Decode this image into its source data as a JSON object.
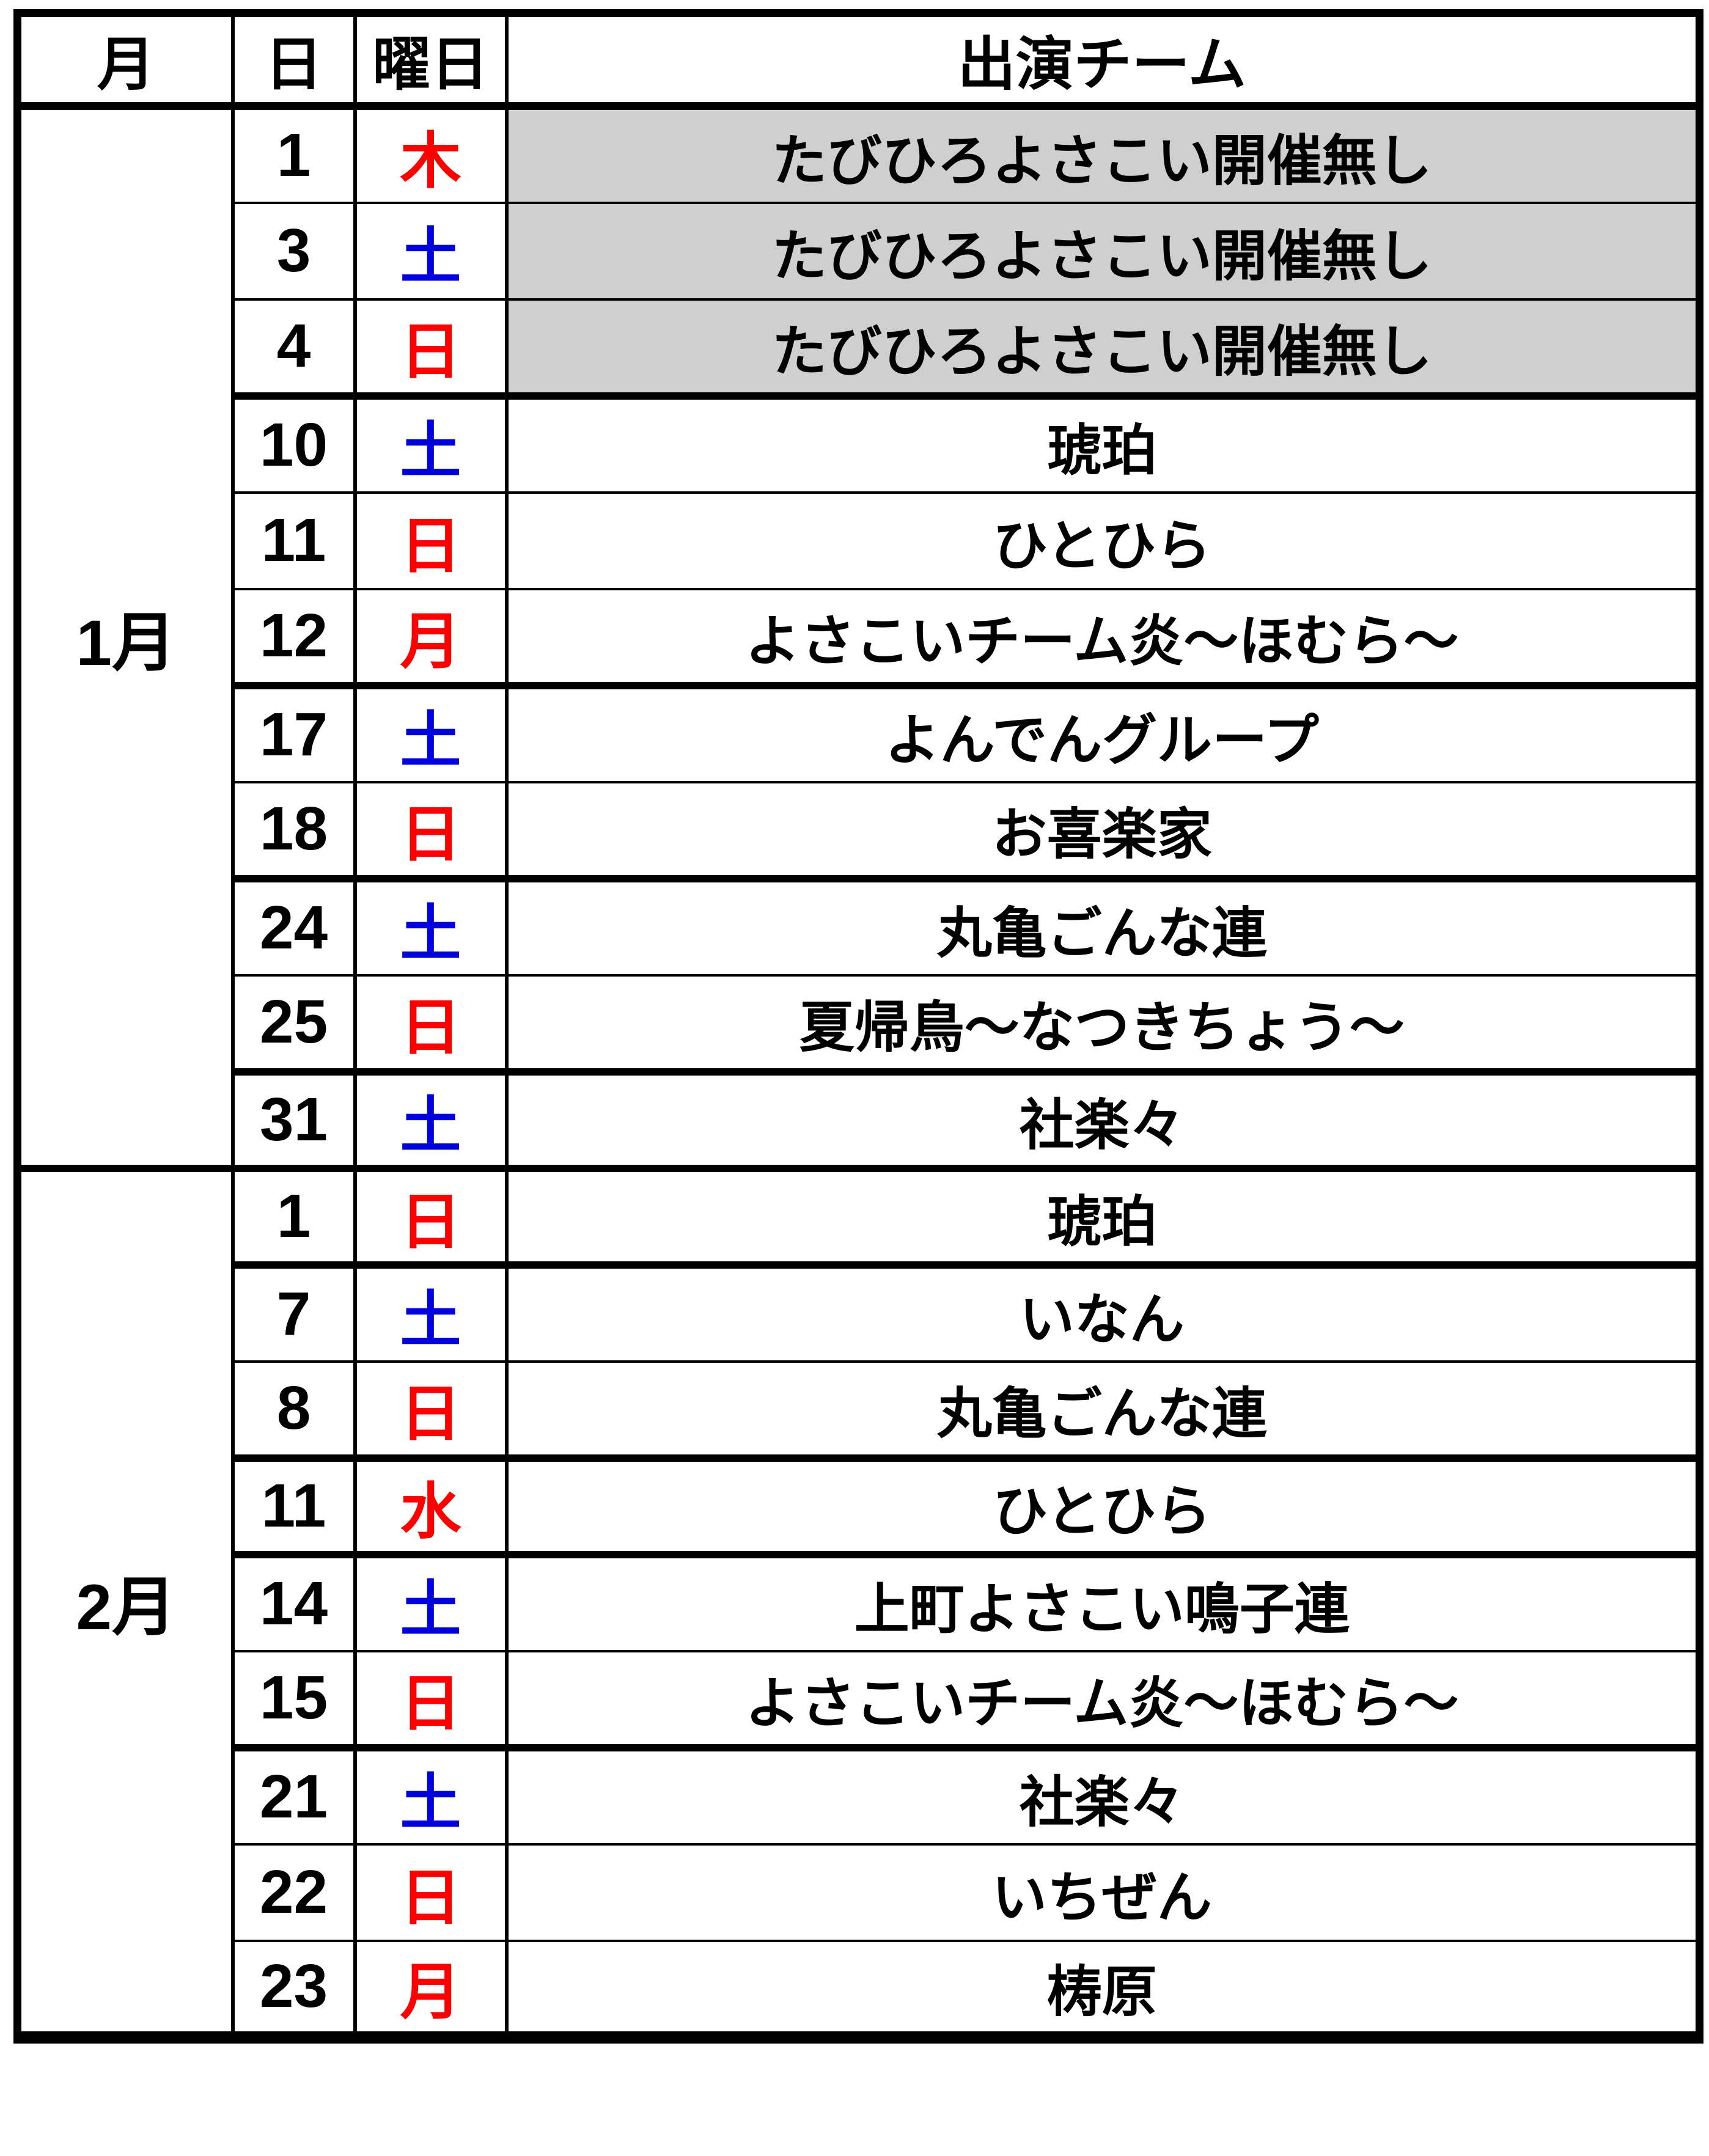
{
  "colors": {
    "holiday_red": "#FF0000",
    "saturday_blue": "#0000DD",
    "no_event_gray": "#D0CFD0",
    "border_black": "#000000"
  },
  "table": {
    "header": {
      "month": "月",
      "day": "日",
      "weekday": "曜日",
      "team": "出演チーム"
    },
    "months": [
      {
        "label": "1月",
        "rows": [
          {
            "day": "1",
            "weekday": "木",
            "weekday_color": "red",
            "team": "たびひろよさこい開催無し",
            "no_event": true,
            "thick_top": false
          },
          {
            "day": "3",
            "weekday": "土",
            "weekday_color": "blue",
            "team": "たびひろよさこい開催無し",
            "no_event": true,
            "thick_top": false
          },
          {
            "day": "4",
            "weekday": "日",
            "weekday_color": "red",
            "team": "たびひろよさこい開催無し",
            "no_event": true,
            "thick_top": false
          },
          {
            "day": "10",
            "weekday": "土",
            "weekday_color": "blue",
            "team": "琥珀",
            "no_event": false,
            "thick_top": true
          },
          {
            "day": "11",
            "weekday": "日",
            "weekday_color": "red",
            "team": "ひとひら",
            "no_event": false,
            "thick_top": false
          },
          {
            "day": "12",
            "weekday": "月",
            "weekday_color": "red",
            "team": "よさこいチーム炎〜ほむら〜",
            "no_event": false,
            "thick_top": false
          },
          {
            "day": "17",
            "weekday": "土",
            "weekday_color": "blue",
            "team": "よんでんグループ",
            "no_event": false,
            "thick_top": true
          },
          {
            "day": "18",
            "weekday": "日",
            "weekday_color": "red",
            "team": "お喜楽家",
            "no_event": false,
            "thick_top": false
          },
          {
            "day": "24",
            "weekday": "土",
            "weekday_color": "blue",
            "team": "丸亀ごんな連",
            "no_event": false,
            "thick_top": true
          },
          {
            "day": "25",
            "weekday": "日",
            "weekday_color": "red",
            "team": "夏帰鳥〜なつきちょう〜",
            "no_event": false,
            "thick_top": false
          },
          {
            "day": "31",
            "weekday": "土",
            "weekday_color": "blue",
            "team": "社楽々",
            "no_event": false,
            "thick_top": true
          }
        ]
      },
      {
        "label": "2月",
        "rows": [
          {
            "day": "1",
            "weekday": "日",
            "weekday_color": "red",
            "team": "琥珀",
            "no_event": false,
            "thick_top": true
          },
          {
            "day": "7",
            "weekday": "土",
            "weekday_color": "blue",
            "team": "いなん",
            "no_event": false,
            "thick_top": true
          },
          {
            "day": "8",
            "weekday": "日",
            "weekday_color": "red",
            "team": "丸亀ごんな連",
            "no_event": false,
            "thick_top": false
          },
          {
            "day": "11",
            "weekday": "水",
            "weekday_color": "red",
            "team": "ひとひら",
            "no_event": false,
            "thick_top": true
          },
          {
            "day": "14",
            "weekday": "土",
            "weekday_color": "blue",
            "team": "上町よさこい鳴子連",
            "no_event": false,
            "thick_top": true
          },
          {
            "day": "15",
            "weekday": "日",
            "weekday_color": "red",
            "team": "よさこいチーム炎〜ほむら〜",
            "no_event": false,
            "thick_top": false
          },
          {
            "day": "21",
            "weekday": "土",
            "weekday_color": "blue",
            "team": "社楽々",
            "no_event": false,
            "thick_top": true
          },
          {
            "day": "22",
            "weekday": "日",
            "weekday_color": "red",
            "team": "いちぜん",
            "no_event": false,
            "thick_top": false
          },
          {
            "day": "23",
            "weekday": "月",
            "weekday_color": "red",
            "team": "梼原",
            "no_event": false,
            "thick_top": false
          }
        ]
      }
    ]
  }
}
